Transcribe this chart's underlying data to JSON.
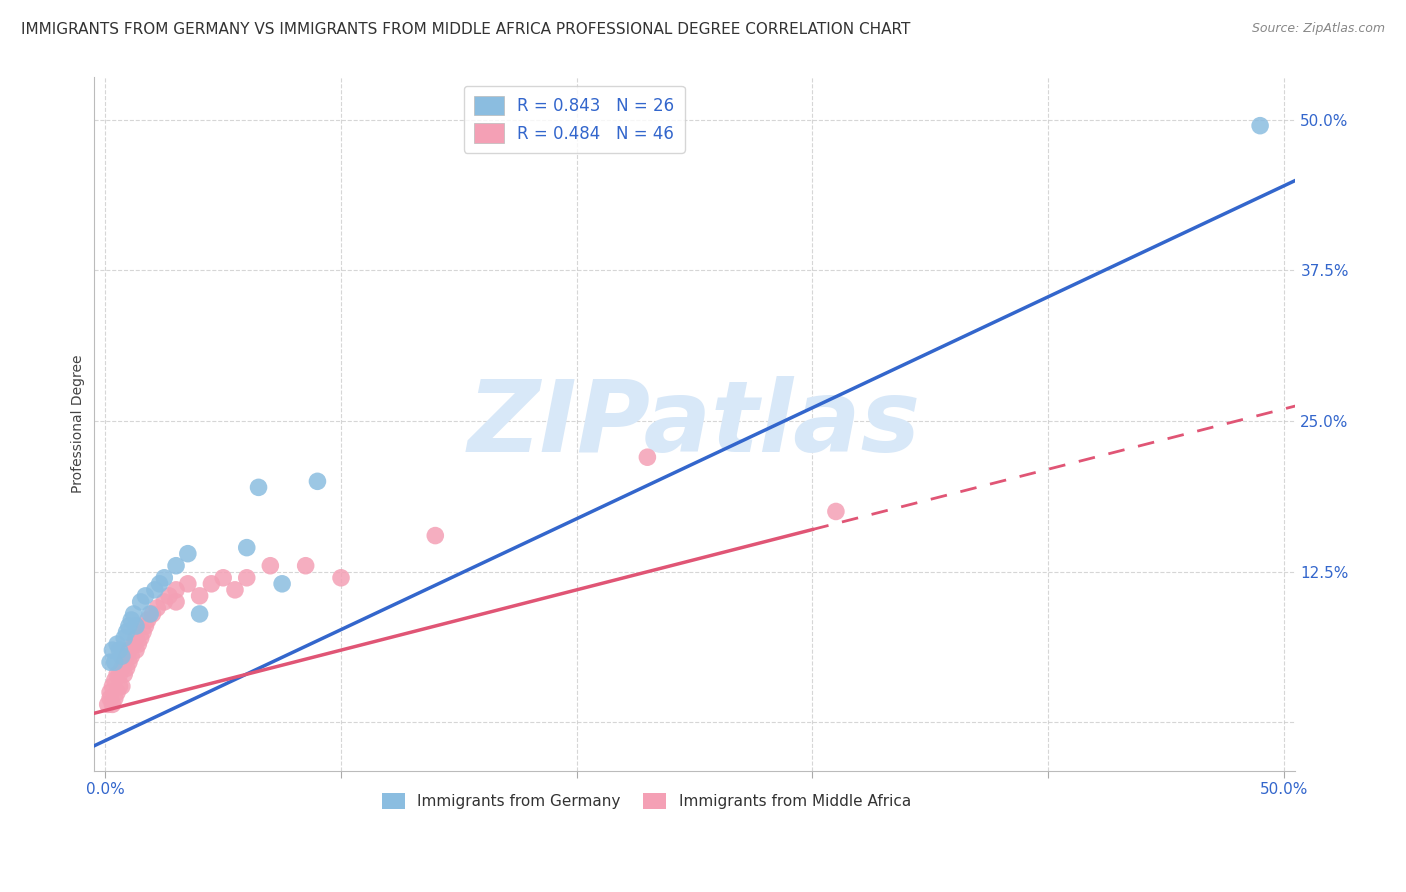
{
  "title": "IMMIGRANTS FROM GERMANY VS IMMIGRANTS FROM MIDDLE AFRICA PROFESSIONAL DEGREE CORRELATION CHART",
  "source": "Source: ZipAtlas.com",
  "ylabel": "Professional Degree",
  "xlim": [
    -0.005,
    0.505
  ],
  "ylim": [
    -0.04,
    0.535
  ],
  "xticks": [
    0.0,
    0.1,
    0.2,
    0.3,
    0.4,
    0.5
  ],
  "ytick_positions": [
    0.0,
    0.125,
    0.25,
    0.375,
    0.5
  ],
  "ytick_labels": [
    "",
    "12.5%",
    "25.0%",
    "37.5%",
    "50.0%"
  ],
  "xtick_labels": [
    "0.0%",
    "",
    "",
    "",
    "",
    "50.0%"
  ],
  "germany_R": 0.843,
  "germany_N": 26,
  "africa_R": 0.484,
  "africa_N": 46,
  "germany_color": "#8bbde0",
  "africa_color": "#f4a0b5",
  "germany_line_color": "#3366cc",
  "africa_line_color": "#e05575",
  "background_color": "#ffffff",
  "watermark_text": "ZIPatlas",
  "watermark_color": "#d8e8f8",
  "tick_color": "#3366cc",
  "legend_label_color": "#3366cc",
  "title_fontsize": 11,
  "source_fontsize": 9,
  "axis_label_fontsize": 10,
  "tick_fontsize": 11,
  "legend_fontsize": 12,
  "germany_line_slope": 0.92,
  "germany_line_intercept": -0.015,
  "africa_line_slope": 0.5,
  "africa_line_intercept": 0.01,
  "africa_line_solid_xmax": 0.3,
  "legend_germany": "Immigrants from Germany",
  "legend_africa": "Immigrants from Middle Africa",
  "germany_x": [
    0.002,
    0.003,
    0.004,
    0.005,
    0.006,
    0.007,
    0.008,
    0.009,
    0.01,
    0.011,
    0.012,
    0.013,
    0.015,
    0.017,
    0.019,
    0.021,
    0.023,
    0.025,
    0.03,
    0.035,
    0.04,
    0.06,
    0.065,
    0.075,
    0.09,
    0.49
  ],
  "germany_y": [
    0.05,
    0.06,
    0.05,
    0.065,
    0.06,
    0.055,
    0.07,
    0.075,
    0.08,
    0.085,
    0.09,
    0.08,
    0.1,
    0.105,
    0.09,
    0.11,
    0.115,
    0.12,
    0.13,
    0.14,
    0.09,
    0.145,
    0.195,
    0.115,
    0.2,
    0.495
  ],
  "africa_x": [
    0.001,
    0.002,
    0.002,
    0.003,
    0.003,
    0.004,
    0.004,
    0.005,
    0.005,
    0.006,
    0.006,
    0.007,
    0.007,
    0.008,
    0.008,
    0.009,
    0.009,
    0.01,
    0.01,
    0.011,
    0.012,
    0.013,
    0.013,
    0.014,
    0.015,
    0.016,
    0.017,
    0.018,
    0.02,
    0.022,
    0.025,
    0.027,
    0.03,
    0.03,
    0.035,
    0.04,
    0.045,
    0.05,
    0.055,
    0.06,
    0.07,
    0.085,
    0.1,
    0.14,
    0.23,
    0.31
  ],
  "africa_y": [
    0.015,
    0.02,
    0.025,
    0.015,
    0.03,
    0.02,
    0.035,
    0.025,
    0.04,
    0.03,
    0.04,
    0.03,
    0.045,
    0.04,
    0.05,
    0.045,
    0.055,
    0.05,
    0.06,
    0.055,
    0.065,
    0.06,
    0.07,
    0.065,
    0.07,
    0.075,
    0.08,
    0.085,
    0.09,
    0.095,
    0.1,
    0.105,
    0.1,
    0.11,
    0.115,
    0.105,
    0.115,
    0.12,
    0.11,
    0.12,
    0.13,
    0.13,
    0.12,
    0.155,
    0.22,
    0.175
  ]
}
